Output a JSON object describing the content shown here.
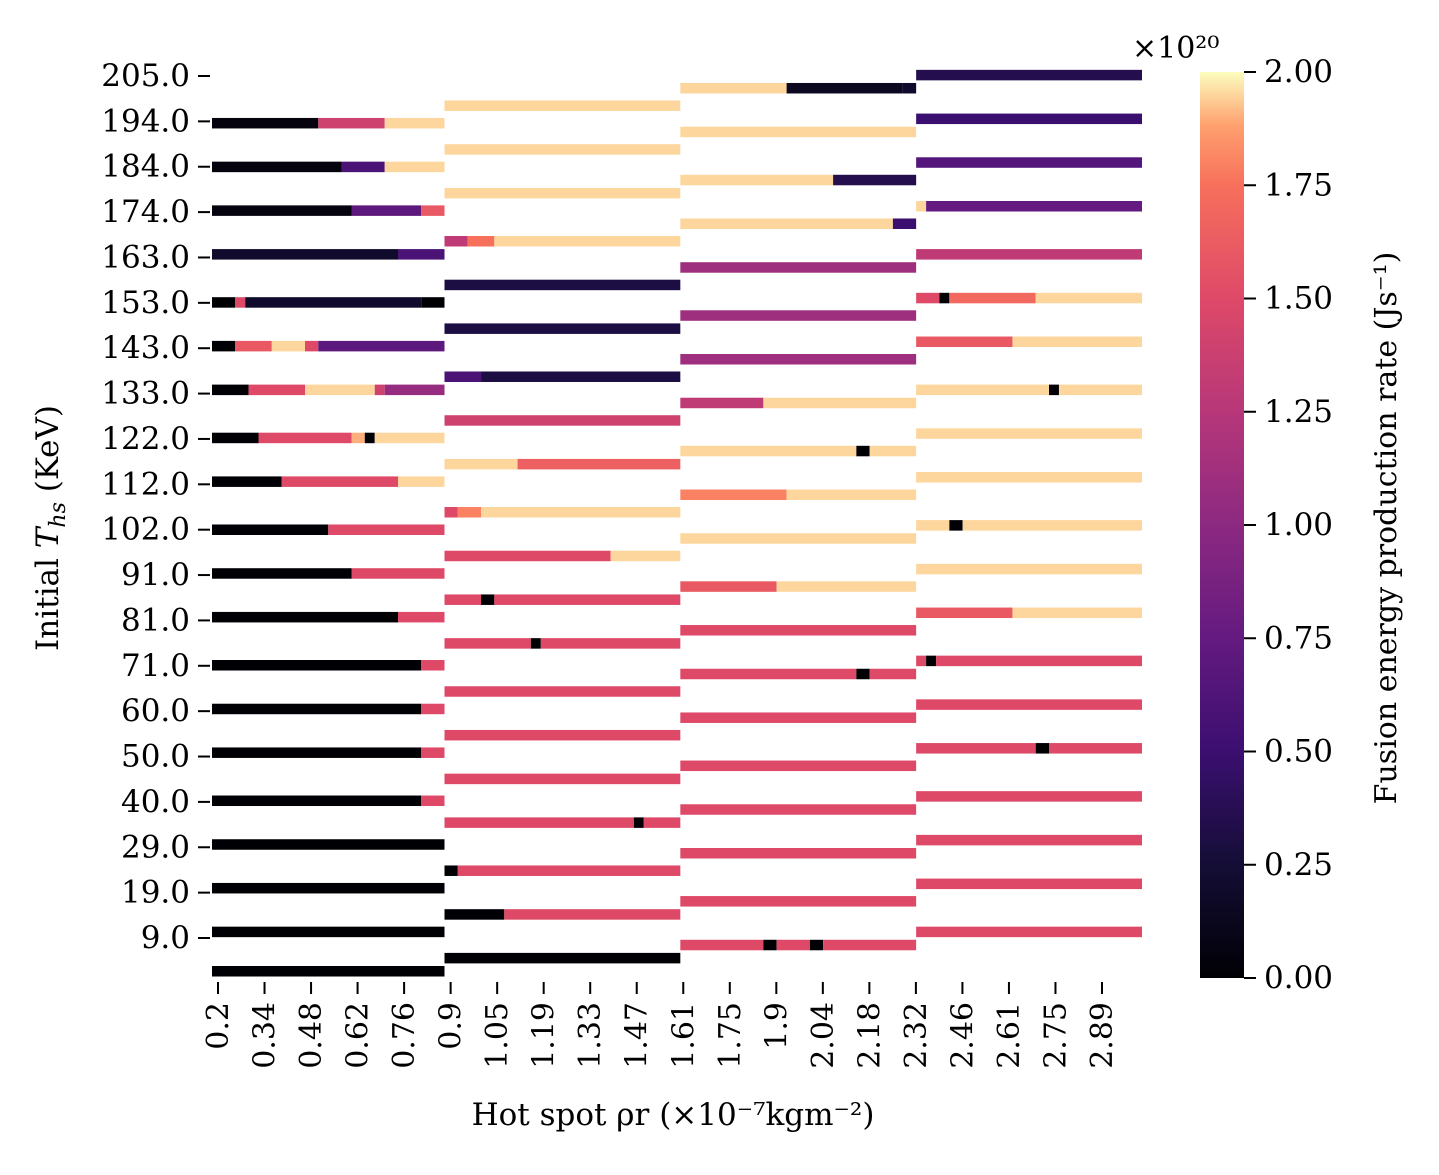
{
  "chart_data": {
    "type": "heatmap",
    "title": "",
    "xlabel": "Hot spot ρr (×10⁻⁷kgm⁻²)",
    "ylabel": "Initial T_hs (KeV)",
    "ylabel_main": "Initial ",
    "ylabel_var": "T",
    "ylabel_sub": "hs",
    "ylabel_unit": " (KeV)",
    "x_ticks": [
      "0.2",
      "0.34",
      "0.48",
      "0.62",
      "0.76",
      "0.9",
      "1.05",
      "1.19",
      "1.33",
      "1.47",
      "1.61",
      "1.75",
      "1.9",
      "2.04",
      "2.18",
      "2.32",
      "2.46",
      "2.61",
      "2.75",
      "2.89"
    ],
    "y_ticks": [
      "205.0",
      "194.0",
      "184.0",
      "174.0",
      "163.0",
      "153.0",
      "143.0",
      "133.0",
      "122.0",
      "112.0",
      "102.0",
      "91.0",
      "81.0",
      "71.0",
      "60.0",
      "50.0",
      "40.0",
      "29.0",
      "19.0",
      "9.0"
    ],
    "x_range": [
      0.2,
      3.0
    ],
    "y_range": [
      0,
      210
    ],
    "colormap": "magma",
    "colorbar": {
      "label": "Fusion energy production rate (Js⁻¹)",
      "multiplier": "×10²⁰",
      "vmin": 0.0,
      "vmax": 2.0,
      "ticks": [
        "0.00",
        "0.25",
        "0.50",
        "0.75",
        "1.00",
        "1.25",
        "1.50",
        "1.75",
        "2.00"
      ]
    },
    "panels": [
      {
        "x_range": [
          0.2,
          0.9
        ],
        "rows": [
          {
            "y": 2,
            "stops": [
              [
                0.9,
                0
              ]
            ]
          },
          {
            "y": 11,
            "stops": [
              [
                0.9,
                0
              ]
            ]
          },
          {
            "y": 21,
            "stops": [
              [
                0.9,
                0
              ]
            ]
          },
          {
            "y": 31,
            "stops": [
              [
                0.9,
                0
              ]
            ]
          },
          {
            "y": 41,
            "stops": [
              [
                0.83,
                0
              ],
              [
                0.9,
                1.5
              ]
            ]
          },
          {
            "y": 52,
            "stops": [
              [
                0.83,
                0
              ],
              [
                0.9,
                1.5
              ]
            ]
          },
          {
            "y": 62,
            "stops": [
              [
                0.83,
                0
              ],
              [
                0.9,
                1.5
              ]
            ]
          },
          {
            "y": 72,
            "stops": [
              [
                0.83,
                0
              ],
              [
                0.9,
                1.5
              ]
            ]
          },
          {
            "y": 83,
            "stops": [
              [
                0.76,
                0
              ],
              [
                0.9,
                1.5
              ]
            ]
          },
          {
            "y": 93,
            "stops": [
              [
                0.62,
                0
              ],
              [
                0.9,
                1.5
              ]
            ]
          },
          {
            "y": 103,
            "stops": [
              [
                0.55,
                0
              ],
              [
                0.9,
                1.5
              ]
            ]
          },
          {
            "y": 114,
            "stops": [
              [
                0.41,
                0
              ],
              [
                0.76,
                1.5
              ],
              [
                0.9,
                1.95
              ]
            ]
          },
          {
            "y": 124,
            "stops": [
              [
                0.34,
                0
              ],
              [
                0.62,
                1.5
              ],
              [
                0.66,
                1.9
              ],
              [
                0.69,
                0
              ],
              [
                0.9,
                1.95
              ]
            ]
          },
          {
            "y": 135,
            "stops": [
              [
                0.31,
                0
              ],
              [
                0.48,
                1.5
              ],
              [
                0.69,
                1.95
              ],
              [
                0.72,
                1.4
              ],
              [
                0.9,
                1.05
              ]
            ]
          },
          {
            "y": 145,
            "stops": [
              [
                0.27,
                0
              ],
              [
                0.38,
                1.6
              ],
              [
                0.48,
                1.95
              ],
              [
                0.52,
                1.5
              ],
              [
                0.9,
                0.7
              ]
            ]
          },
          {
            "y": 155,
            "stops": [
              [
                0.27,
                0
              ],
              [
                0.3,
                1.5
              ],
              [
                0.83,
                0.2
              ],
              [
                0.9,
                0
              ]
            ]
          },
          {
            "y": 166,
            "stops": [
              [
                0.76,
                0.2
              ],
              [
                0.9,
                0.6
              ]
            ]
          },
          {
            "y": 176,
            "stops": [
              [
                0.62,
                0.05
              ],
              [
                0.83,
                0.7
              ],
              [
                0.9,
                1.6
              ]
            ]
          },
          {
            "y": 186,
            "stops": [
              [
                0.59,
                0.05
              ],
              [
                0.72,
                0.6
              ],
              [
                0.9,
                1.95
              ]
            ]
          },
          {
            "y": 196,
            "stops": [
              [
                0.52,
                0.05
              ],
              [
                0.72,
                1.4
              ],
              [
                0.9,
                1.95
              ]
            ]
          }
        ]
      },
      {
        "x_range": [
          0.9,
          1.61
        ],
        "rows": [
          {
            "y": 5,
            "stops": [
              [
                1.61,
                0
              ]
            ]
          },
          {
            "y": 15,
            "stops": [
              [
                1.08,
                0
              ],
              [
                1.61,
                1.5
              ]
            ]
          },
          {
            "y": 25,
            "stops": [
              [
                0.94,
                0
              ],
              [
                1.61,
                1.5
              ]
            ]
          },
          {
            "y": 36,
            "stops": [
              [
                1.47,
                1.5
              ],
              [
                1.5,
                0
              ],
              [
                1.61,
                1.5
              ]
            ]
          },
          {
            "y": 46,
            "stops": [
              [
                1.61,
                1.5
              ]
            ]
          },
          {
            "y": 56,
            "stops": [
              [
                1.61,
                1.5
              ]
            ]
          },
          {
            "y": 66,
            "stops": [
              [
                1.61,
                1.5
              ]
            ]
          },
          {
            "y": 77,
            "stops": [
              [
                1.16,
                1.5
              ],
              [
                1.19,
                0
              ],
              [
                1.61,
                1.5
              ]
            ]
          },
          {
            "y": 87,
            "stops": [
              [
                1.01,
                1.5
              ],
              [
                1.05,
                0
              ],
              [
                1.61,
                1.5
              ]
            ]
          },
          {
            "y": 97,
            "stops": [
              [
                1.4,
                1.5
              ],
              [
                1.61,
                1.95
              ]
            ]
          },
          {
            "y": 107,
            "stops": [
              [
                0.94,
                1.5
              ],
              [
                1.01,
                1.8
              ],
              [
                1.61,
                1.95
              ]
            ]
          },
          {
            "y": 118,
            "stops": [
              [
                1.12,
                1.95
              ],
              [
                1.61,
                1.65
              ]
            ]
          },
          {
            "y": 128,
            "stops": [
              [
                1.61,
                1.4
              ]
            ]
          },
          {
            "y": 138,
            "stops": [
              [
                1.01,
                0.6
              ],
              [
                1.61,
                0.3
              ]
            ]
          },
          {
            "y": 149,
            "stops": [
              [
                1.61,
                0.3
              ]
            ]
          },
          {
            "y": 159,
            "stops": [
              [
                1.61,
                0.3
              ]
            ]
          },
          {
            "y": 169,
            "stops": [
              [
                0.97,
                1.3
              ],
              [
                1.05,
                1.75
              ],
              [
                1.61,
                1.95
              ]
            ]
          },
          {
            "y": 180,
            "stops": [
              [
                1.61,
                1.95
              ]
            ]
          },
          {
            "y": 190,
            "stops": [
              [
                1.61,
                1.95
              ]
            ]
          },
          {
            "y": 200,
            "stops": [
              [
                1.61,
                1.95
              ]
            ]
          }
        ]
      },
      {
        "x_range": [
          1.61,
          2.32
        ],
        "rows": [
          {
            "y": 8,
            "stops": [
              [
                1.86,
                1.5
              ],
              [
                1.9,
                0
              ],
              [
                2.0,
                1.5
              ],
              [
                2.04,
                0
              ],
              [
                2.32,
                1.5
              ]
            ]
          },
          {
            "y": 18,
            "stops": [
              [
                2.32,
                1.5
              ]
            ]
          },
          {
            "y": 29,
            "stops": [
              [
                2.32,
                1.5
              ]
            ]
          },
          {
            "y": 39,
            "stops": [
              [
                2.32,
                1.5
              ]
            ]
          },
          {
            "y": 49,
            "stops": [
              [
                2.32,
                1.5
              ]
            ]
          },
          {
            "y": 60,
            "stops": [
              [
                2.32,
                1.5
              ]
            ]
          },
          {
            "y": 70,
            "stops": [
              [
                2.14,
                1.5
              ],
              [
                2.18,
                0
              ],
              [
                2.32,
                1.5
              ]
            ]
          },
          {
            "y": 80,
            "stops": [
              [
                2.32,
                1.5
              ]
            ]
          },
          {
            "y": 90,
            "stops": [
              [
                1.9,
                1.6
              ],
              [
                2.32,
                1.95
              ]
            ]
          },
          {
            "y": 101,
            "stops": [
              [
                2.32,
                1.95
              ]
            ]
          },
          {
            "y": 111,
            "stops": [
              [
                1.93,
                1.8
              ],
              [
                2.32,
                1.95
              ]
            ]
          },
          {
            "y": 121,
            "stops": [
              [
                2.14,
                1.95
              ],
              [
                2.18,
                0
              ],
              [
                2.32,
                1.95
              ]
            ]
          },
          {
            "y": 132,
            "stops": [
              [
                1.86,
                1.3
              ],
              [
                2.32,
                1.95
              ]
            ]
          },
          {
            "y": 142,
            "stops": [
              [
                2.32,
                1.1
              ]
            ]
          },
          {
            "y": 152,
            "stops": [
              [
                2.32,
                1.1
              ]
            ]
          },
          {
            "y": 163,
            "stops": [
              [
                2.32,
                1.1
              ]
            ]
          },
          {
            "y": 173,
            "stops": [
              [
                2.25,
                1.95
              ],
              [
                2.32,
                0.5
              ]
            ]
          },
          {
            "y": 183,
            "stops": [
              [
                2.07,
                1.95
              ],
              [
                2.32,
                0.35
              ]
            ]
          },
          {
            "y": 194,
            "stops": [
              [
                2.32,
                1.95
              ]
            ]
          },
          {
            "y": 204,
            "stops": [
              [
                1.93,
                1.95
              ],
              [
                2.28,
                0.15
              ],
              [
                2.32,
                0.2
              ]
            ]
          }
        ]
      },
      {
        "x_range": [
          2.32,
          3.0
        ],
        "rows": [
          {
            "y": 11,
            "stops": [
              [
                3.0,
                1.5
              ]
            ]
          },
          {
            "y": 22,
            "stops": [
              [
                3.0,
                1.5
              ]
            ]
          },
          {
            "y": 32,
            "stops": [
              [
                3.0,
                1.5
              ]
            ]
          },
          {
            "y": 42,
            "stops": [
              [
                3.0,
                1.5
              ]
            ]
          },
          {
            "y": 53,
            "stops": [
              [
                2.68,
                1.5
              ],
              [
                2.72,
                0
              ],
              [
                3.0,
                1.5
              ]
            ]
          },
          {
            "y": 63,
            "stops": [
              [
                3.0,
                1.5
              ]
            ]
          },
          {
            "y": 73,
            "stops": [
              [
                2.35,
                1.5
              ],
              [
                2.38,
                0
              ],
              [
                3.0,
                1.5
              ]
            ]
          },
          {
            "y": 84,
            "stops": [
              [
                2.61,
                1.6
              ],
              [
                3.0,
                1.95
              ]
            ]
          },
          {
            "y": 94,
            "stops": [
              [
                3.0,
                1.95
              ]
            ]
          },
          {
            "y": 104,
            "stops": [
              [
                2.42,
                1.95
              ],
              [
                2.46,
                0
              ],
              [
                3.0,
                1.95
              ]
            ]
          },
          {
            "y": 115,
            "stops": [
              [
                3.0,
                1.95
              ]
            ]
          },
          {
            "y": 125,
            "stops": [
              [
                3.0,
                1.95
              ]
            ]
          },
          {
            "y": 135,
            "stops": [
              [
                2.72,
                1.95
              ],
              [
                2.75,
                0
              ],
              [
                3.0,
                1.95
              ]
            ]
          },
          {
            "y": 146,
            "stops": [
              [
                2.61,
                1.6
              ],
              [
                3.0,
                1.95
              ]
            ]
          },
          {
            "y": 156,
            "stops": [
              [
                2.39,
                1.5
              ],
              [
                2.42,
                0
              ],
              [
                2.68,
                1.7
              ],
              [
                3.0,
                1.95
              ]
            ]
          },
          {
            "y": 166,
            "stops": [
              [
                3.0,
                1.3
              ]
            ]
          },
          {
            "y": 177,
            "stops": [
              [
                2.35,
                1.95
              ],
              [
                3.0,
                0.75
              ]
            ]
          },
          {
            "y": 187,
            "stops": [
              [
                3.0,
                0.65
              ]
            ]
          },
          {
            "y": 197,
            "stops": [
              [
                3.0,
                0.5
              ]
            ]
          },
          {
            "y": 207,
            "stops": [
              [
                3.0,
                0.35
              ]
            ]
          }
        ]
      }
    ]
  }
}
